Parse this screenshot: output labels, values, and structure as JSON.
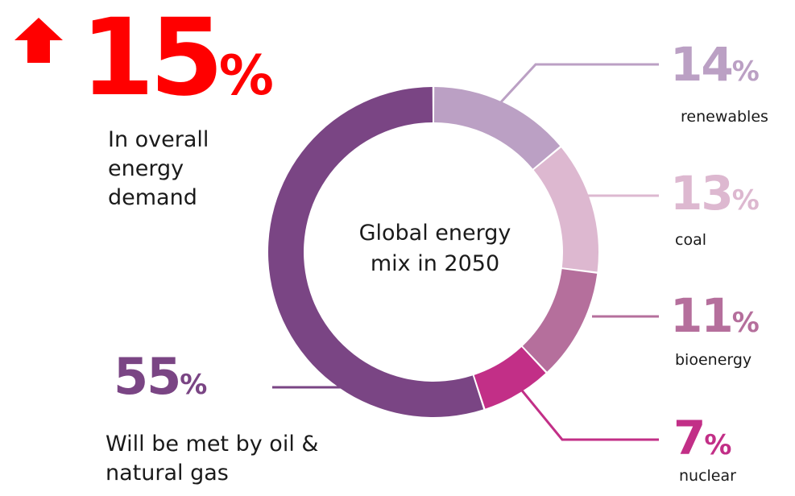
{
  "demand": {
    "value": "15",
    "unit": "%",
    "text_lines": [
      "In overall",
      "energy",
      "demand"
    ]
  },
  "oil_gas": {
    "value": "55",
    "unit": "%",
    "text_lines": [
      "Will be met by oil &",
      "natural gas"
    ]
  },
  "center_text_lines": [
    "Global energy",
    "mix in 2050"
  ],
  "chart_data": {
    "type": "pie",
    "donut": true,
    "title": "",
    "categories": [
      "renewables",
      "coal",
      "bioenergy",
      "nuclear",
      "oil & natural gas"
    ],
    "values": [
      14,
      13,
      11,
      7,
      55
    ],
    "unit": "%",
    "colors": [
      "#bba0c4",
      "#ddb8d0",
      "#b56f9c",
      "#c22f87",
      "#7a4584"
    ],
    "legend": "callouts"
  },
  "colors": {
    "accent_red": "#ff0000",
    "oil_gas_purple": "#7a4584"
  }
}
